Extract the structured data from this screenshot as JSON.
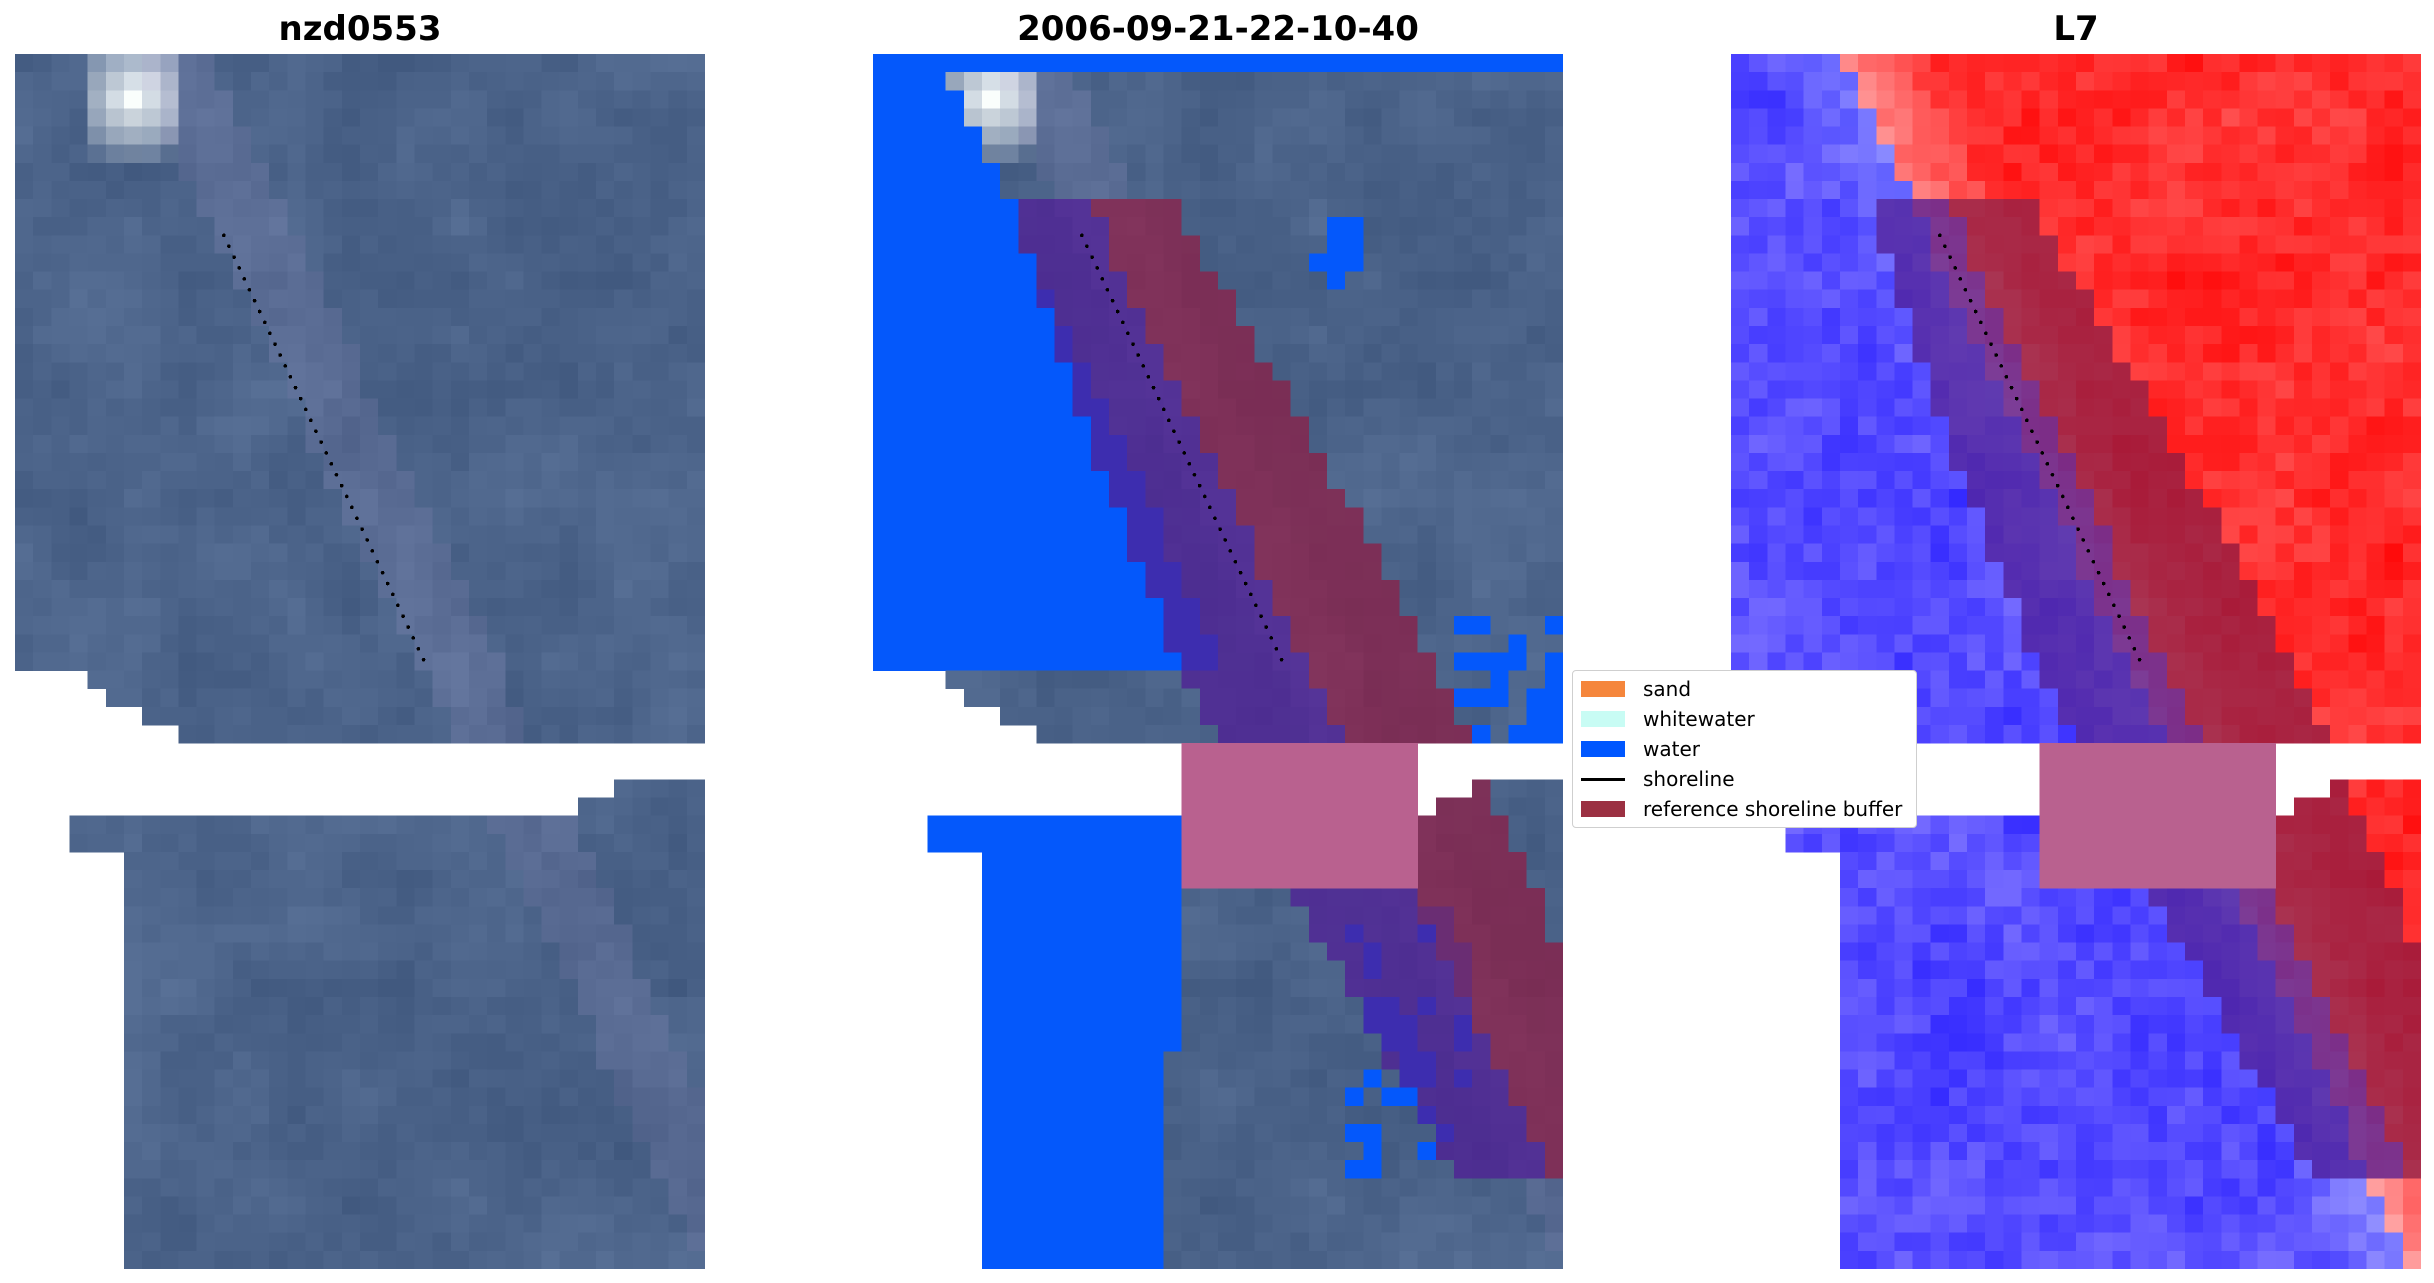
{
  "panels": [
    {
      "title": "nzd0553",
      "mode": "rgb"
    },
    {
      "title": "2006-09-21-22-10-40",
      "mode": "class"
    },
    {
      "title": "L7",
      "mode": "index"
    }
  ],
  "legend": {
    "items": [
      {
        "label": "sand",
        "kind": "patch",
        "color": "#f5863c"
      },
      {
        "label": "whitewater",
        "kind": "patch",
        "color": "#c8fcf4"
      },
      {
        "label": "water",
        "kind": "patch",
        "color": "#0057ff"
      },
      {
        "label": "shoreline",
        "kind": "line",
        "color": "#000000"
      },
      {
        "label": "reference shoreline buffer",
        "kind": "patch",
        "color": "#9b3042"
      }
    ]
  },
  "colors": {
    "imagery": "#4f6a8d",
    "water_class": "#0458fb",
    "buffer_overlay": "#8e1e48",
    "index_high": "#ff1e1e",
    "index_low": "#2233ff"
  }
}
